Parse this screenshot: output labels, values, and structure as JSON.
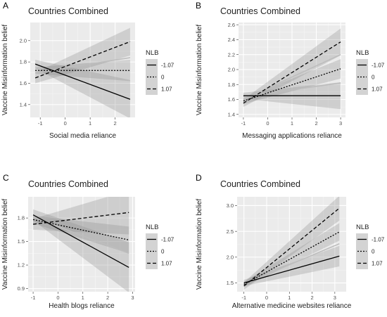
{
  "legend_title": "NLB",
  "legend_levels": [
    "-1.07",
    "0",
    "1.07"
  ],
  "chart_data": [
    {
      "type": "line",
      "panel": "A",
      "title": "Countries Combined",
      "xlabel": "Social media reliance",
      "ylabel": "Vaccine Misinformation belief",
      "xlim": [
        -1.4,
        2.8
      ],
      "ylim": [
        1.28,
        2.17
      ],
      "xticks": [
        -1,
        0,
        1,
        2
      ],
      "yticks": [
        1.4,
        1.6,
        1.8,
        2.0
      ],
      "ytick_labels": [
        "1.4",
        "1.6",
        "1.8",
        "2.0"
      ],
      "grid": true,
      "legend": "right",
      "series": [
        {
          "name": "-1.07",
          "linetype": "solid",
          "x": [
            -1.2,
            2.6
          ],
          "y": [
            1.78,
            1.45
          ],
          "ci_halfwidth": [
            0.04,
            0.18
          ]
        },
        {
          "name": "0",
          "linetype": "dotted",
          "x": [
            -1.2,
            2.6
          ],
          "y": [
            1.72,
            1.72
          ],
          "ci_halfwidth": [
            0.03,
            0.1
          ]
        },
        {
          "name": "1.07",
          "linetype": "dashed",
          "x": [
            -1.2,
            2.6
          ],
          "y": [
            1.65,
            1.99
          ],
          "ci_halfwidth": [
            0.05,
            0.13
          ]
        }
      ],
      "extra_lines": [
        {
          "x": [
            -1.2,
            2.6
          ],
          "y": [
            1.7,
            1.84
          ]
        }
      ]
    },
    {
      "type": "line",
      "panel": "B",
      "title": "Countries Combined",
      "xlabel": "Messaging applications reliance",
      "ylabel": "Vaccine Misinformation belief",
      "xlim": [
        -1.2,
        3.2
      ],
      "ylim": [
        1.36,
        2.63
      ],
      "xticks": [
        -1,
        0,
        1,
        2,
        3
      ],
      "yticks": [
        1.4,
        1.6,
        1.8,
        2.0,
        2.2,
        2.4,
        2.6
      ],
      "ytick_labels": [
        "1.4",
        "1.6",
        "1.8",
        "2.0",
        "2.2",
        "2.4",
        "2.6"
      ],
      "grid": true,
      "legend": "right",
      "series": [
        {
          "name": "-1.07",
          "linetype": "solid",
          "x": [
            -1,
            3
          ],
          "y": [
            1.65,
            1.65
          ],
          "ci_halfwidth": [
            0.04,
            0.18
          ]
        },
        {
          "name": "0",
          "linetype": "dotted",
          "x": [
            -1,
            3
          ],
          "y": [
            1.58,
            2.01
          ],
          "ci_halfwidth": [
            0.04,
            0.13
          ]
        },
        {
          "name": "1.07",
          "linetype": "dashed",
          "x": [
            -1,
            3
          ],
          "y": [
            1.55,
            2.37
          ],
          "ci_halfwidth": [
            0.05,
            0.18
          ]
        }
      ],
      "extra_lines": [
        {
          "x": [
            -1,
            3
          ],
          "y": [
            1.6,
            2.2
          ]
        },
        {
          "x": [
            -1,
            3
          ],
          "y": [
            1.64,
            1.82
          ]
        }
      ]
    },
    {
      "type": "line",
      "panel": "C",
      "title": "Countries Combined",
      "xlabel": "Health blogs reliance",
      "ylabel": "Vaccine Misinformation belief",
      "xlim": [
        -1.2,
        3.1
      ],
      "ylim": [
        0.86,
        2.07
      ],
      "xticks": [
        -1,
        0,
        1,
        2,
        3
      ],
      "yticks": [
        0.9,
        1.2,
        1.5,
        1.8
      ],
      "ytick_labels": [
        "0.9",
        "1.2",
        "1.5",
        "1.8"
      ],
      "grid": true,
      "legend": "right",
      "series": [
        {
          "name": "-1.07",
          "linetype": "solid",
          "x": [
            -1,
            2.85
          ],
          "y": [
            1.84,
            1.17
          ],
          "ci_halfwidth": [
            0.07,
            0.32
          ]
        },
        {
          "name": "0",
          "linetype": "dotted",
          "x": [
            -1,
            2.85
          ],
          "y": [
            1.78,
            1.52
          ],
          "ci_halfwidth": [
            0.05,
            0.17
          ]
        },
        {
          "name": "1.07",
          "linetype": "dashed",
          "x": [
            -1,
            2.85
          ],
          "y": [
            1.72,
            1.87
          ],
          "ci_halfwidth": [
            0.07,
            0.28
          ]
        }
      ],
      "extra_lines": [
        {
          "x": [
            -1,
            2.85
          ],
          "y": [
            1.81,
            1.35
          ]
        }
      ]
    },
    {
      "type": "line",
      "panel": "D",
      "title": "Countries Combined",
      "xlabel": "Alternative medicine websites reliance",
      "ylabel": "Vaccine Misinformation belief",
      "xlim": [
        -1.3,
        3.5
      ],
      "ylim": [
        1.33,
        3.17
      ],
      "xticks": [
        -1,
        0,
        1,
        2,
        3
      ],
      "yticks": [
        1.5,
        2.0,
        2.5,
        3.0
      ],
      "ytick_labels": [
        "1.5",
        "2.0",
        "2.5",
        "3.0"
      ],
      "grid": true,
      "legend": "right",
      "series": [
        {
          "name": "-1.07",
          "linetype": "solid",
          "x": [
            -1,
            3.2
          ],
          "y": [
            1.5,
            2.02
          ],
          "ci_halfwidth": [
            0.06,
            0.2
          ]
        },
        {
          "name": "0",
          "linetype": "dotted",
          "x": [
            -1,
            3.2
          ],
          "y": [
            1.47,
            2.49
          ],
          "ci_halfwidth": [
            0.05,
            0.17
          ]
        },
        {
          "name": "1.07",
          "linetype": "dashed",
          "x": [
            -1,
            3.2
          ],
          "y": [
            1.44,
            2.95
          ],
          "ci_halfwidth": [
            0.07,
            0.24
          ]
        }
      ],
      "extra_lines": [
        {
          "x": [
            -1,
            3.2
          ],
          "y": [
            1.48,
            2.26
          ]
        }
      ]
    }
  ]
}
